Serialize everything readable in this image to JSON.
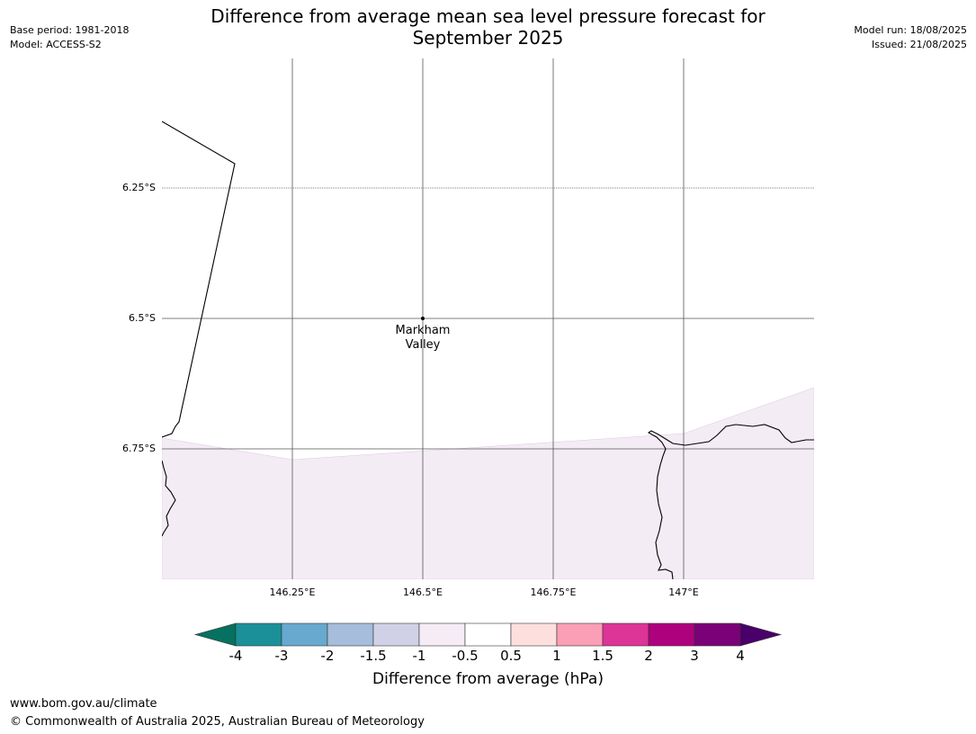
{
  "header": {
    "title_line1": "Difference from average mean sea level pressure forecast for",
    "title_line2": "September 2025",
    "base_period": "Base period: 1981-2018",
    "model": "Model: ACCESS-S2",
    "model_run": "Model run: 18/08/2025",
    "issued": "Issued: 21/08/2025"
  },
  "map": {
    "lat_labels": [
      "6.25°S",
      "6.5°S",
      "6.75°S"
    ],
    "lon_labels": [
      "146.25°E",
      "146.5°E",
      "146.75°E",
      "147°E"
    ],
    "place_line1": "Markham",
    "place_line2": "Valley",
    "anomaly_fill_color": "#f4ecf5",
    "anomaly_band": "-0.5 to -1"
  },
  "colorbar": {
    "ticks": [
      "-4",
      "-3",
      "-2",
      "-1.5",
      "-1",
      "-0.5",
      "0.5",
      "1",
      "1.5",
      "2",
      "3",
      "4"
    ],
    "colors": [
      "#067160",
      "#1b9099",
      "#67a9cf",
      "#a6bddb",
      "#d0d1e6",
      "#f5ecf6",
      "#ffffff",
      "#fde0dd",
      "#fa9fb5",
      "#dd3497",
      "#ae017e",
      "#7a0177",
      "#49006a"
    ],
    "label": "Difference from average (hPa)"
  },
  "footer": {
    "url": "www.bom.gov.au/climate",
    "copyright": "© Commonwealth of Australia 2025, Australian Bureau of Meteorology"
  }
}
